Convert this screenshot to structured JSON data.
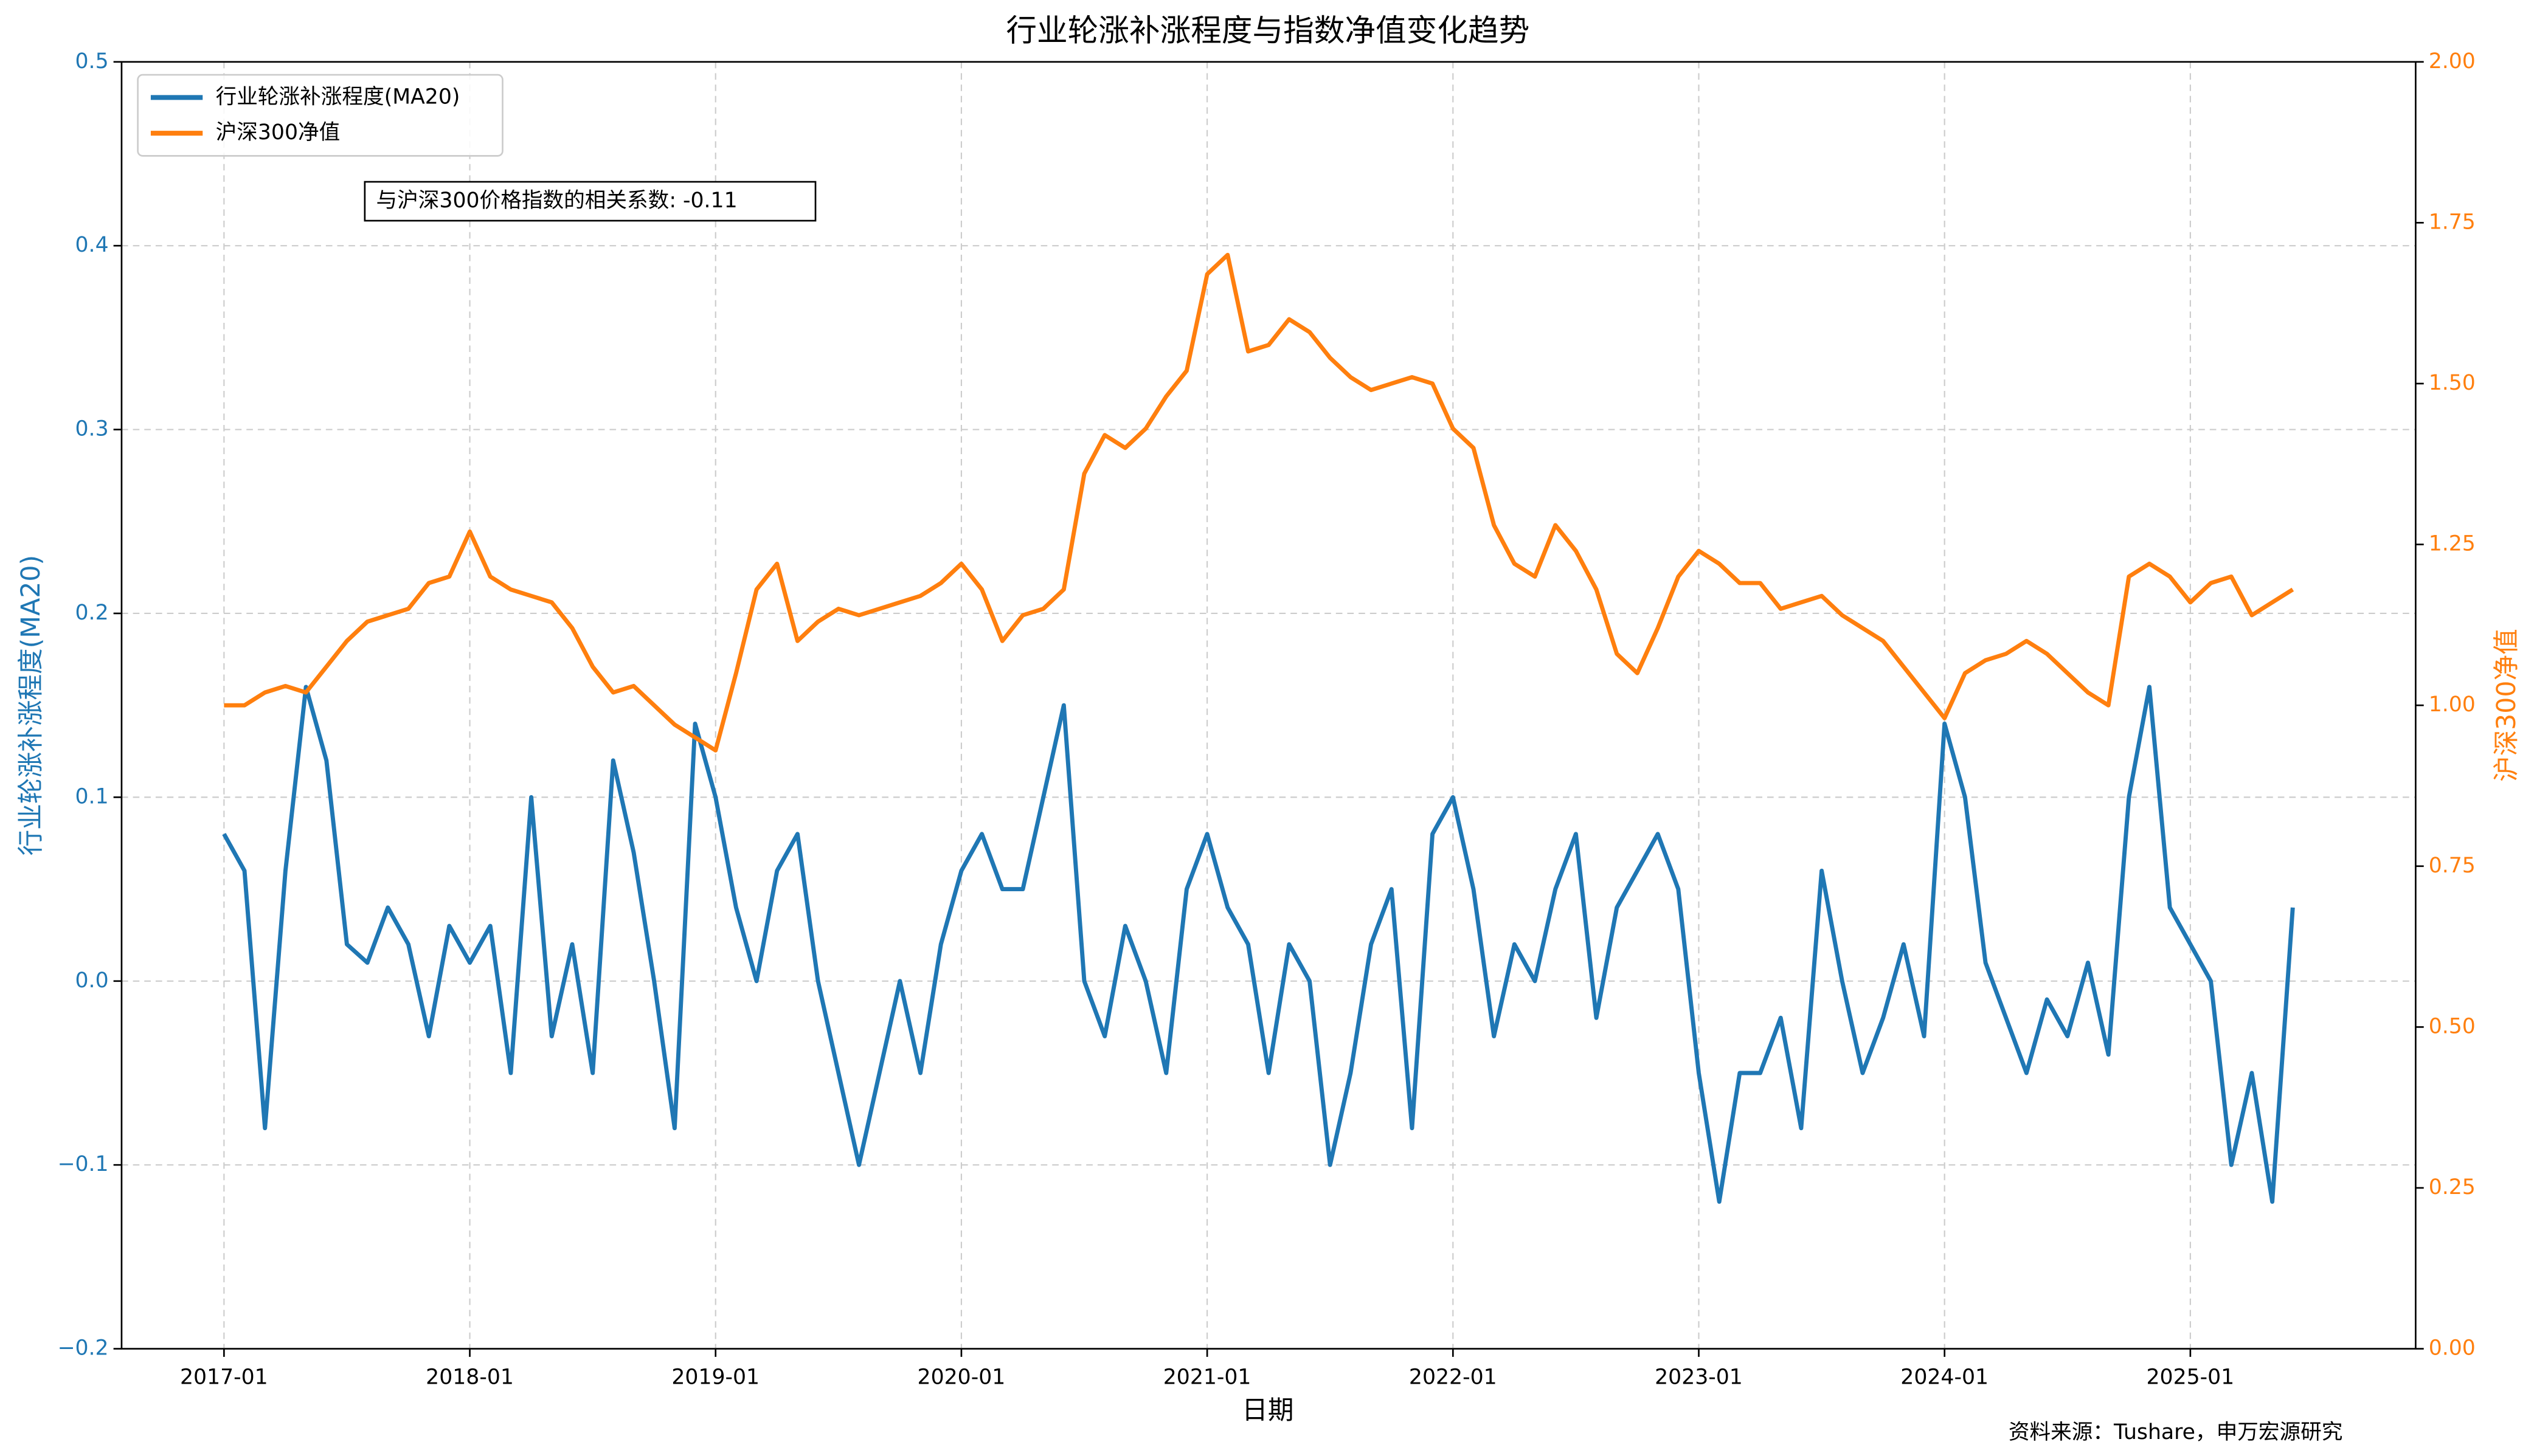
{
  "chart_data": {
    "type": "line",
    "title": "行业轮涨补涨程度与指数净值变化趋势",
    "xlabel": "日期",
    "ylabel": "行业轮涨补涨程度(MA20)",
    "y2label": "沪深300净值",
    "annotation": "与沪深300价格指数的相关系数: -0.11",
    "source": "资料来源：Tushare，申万宏源研究",
    "grid": true,
    "legend": "upper left",
    "x": [
      "2017-01",
      "2017-02",
      "2017-03",
      "2017-04",
      "2017-05",
      "2017-06",
      "2017-07",
      "2017-08",
      "2017-09",
      "2017-10",
      "2017-11",
      "2017-12",
      "2018-01",
      "2018-02",
      "2018-03",
      "2018-04",
      "2018-05",
      "2018-06",
      "2018-07",
      "2018-08",
      "2018-09",
      "2018-10",
      "2018-11",
      "2018-12",
      "2019-01",
      "2019-02",
      "2019-03",
      "2019-04",
      "2019-05",
      "2019-06",
      "2019-07",
      "2019-08",
      "2019-09",
      "2019-10",
      "2019-11",
      "2019-12",
      "2020-01",
      "2020-02",
      "2020-03",
      "2020-04",
      "2020-05",
      "2020-06",
      "2020-07",
      "2020-08",
      "2020-09",
      "2020-10",
      "2020-11",
      "2020-12",
      "2021-01",
      "2021-02",
      "2021-03",
      "2021-04",
      "2021-05",
      "2021-06",
      "2021-07",
      "2021-08",
      "2021-09",
      "2021-10",
      "2021-11",
      "2021-12",
      "2022-01",
      "2022-02",
      "2022-03",
      "2022-04",
      "2022-05",
      "2022-06",
      "2022-07",
      "2022-08",
      "2022-09",
      "2022-10",
      "2022-11",
      "2022-12",
      "2023-01",
      "2023-02",
      "2023-03",
      "2023-04",
      "2023-05",
      "2023-06",
      "2023-07",
      "2023-08",
      "2023-09",
      "2023-10",
      "2023-11",
      "2023-12",
      "2024-01",
      "2024-02",
      "2024-03",
      "2024-04",
      "2024-05",
      "2024-06",
      "2024-07",
      "2024-08",
      "2024-09",
      "2024-10",
      "2024-11",
      "2024-12",
      "2025-01",
      "2025-02",
      "2025-03",
      "2025-04",
      "2025-05",
      "2025-06"
    ],
    "xlim": [
      "2016-08",
      "2025-12"
    ],
    "xticks": [
      "2017-01",
      "2018-01",
      "2019-01",
      "2020-01",
      "2021-01",
      "2022-01",
      "2023-01",
      "2024-01",
      "2025-01"
    ],
    "ylim": [
      -0.2,
      0.5
    ],
    "yticks": [
      {
        "value": -0.2,
        "label": "−0.2"
      },
      {
        "value": -0.1,
        "label": "−0.1"
      },
      {
        "value": 0,
        "label": "0.0"
      },
      {
        "value": 0.1,
        "label": "0.1"
      },
      {
        "value": 0.2,
        "label": "0.2"
      },
      {
        "value": 0.3,
        "label": "0.3"
      },
      {
        "value": 0.4,
        "label": "0.4"
      },
      {
        "value": 0.5,
        "label": "0.5"
      }
    ],
    "y2lim": [
      0,
      2
    ],
    "y2ticks": [
      {
        "value": 0,
        "label": "0.00"
      },
      {
        "value": 0.25,
        "label": "0.25"
      },
      {
        "value": 0.5,
        "label": "0.50"
      },
      {
        "value": 0.75,
        "label": "0.75"
      },
      {
        "value": 1,
        "label": "1.00"
      },
      {
        "value": 1.25,
        "label": "1.25"
      },
      {
        "value": 1.5,
        "label": "1.50"
      },
      {
        "value": 1.75,
        "label": "1.75"
      },
      {
        "value": 2,
        "label": "2.00"
      }
    ],
    "series": [
      {
        "name": "行业轮涨补涨程度(MA20)",
        "color": "#1f77b4",
        "axis": "y",
        "values": [
          0.08,
          0.06,
          -0.08,
          0.06,
          0.16,
          0.12,
          0.02,
          0.01,
          0.04,
          0.02,
          -0.03,
          0.03,
          0.01,
          0.03,
          -0.05,
          0.1,
          -0.03,
          0.02,
          -0.05,
          0.12,
          0.07,
          0.0,
          -0.08,
          0.14,
          0.1,
          0.04,
          0.0,
          0.06,
          0.08,
          0.0,
          -0.05,
          -0.1,
          -0.05,
          0.0,
          -0.05,
          0.02,
          0.06,
          0.08,
          0.05,
          0.05,
          0.1,
          0.15,
          0.0,
          -0.03,
          0.03,
          0.0,
          -0.05,
          0.05,
          0.08,
          0.04,
          0.02,
          -0.05,
          0.02,
          0.0,
          -0.1,
          -0.05,
          0.02,
          0.05,
          -0.08,
          0.08,
          0.1,
          0.05,
          -0.03,
          0.02,
          0.0,
          0.05,
          0.08,
          -0.02,
          0.04,
          0.06,
          0.08,
          0.05,
          -0.05,
          -0.12,
          -0.05,
          -0.05,
          -0.02,
          -0.08,
          0.06,
          0.0,
          -0.05,
          -0.02,
          0.02,
          -0.03,
          0.14,
          0.1,
          0.01,
          -0.02,
          -0.05,
          -0.01,
          -0.03,
          0.01,
          -0.04,
          0.1,
          0.16,
          0.04,
          0.02,
          0.0,
          -0.1,
          -0.05,
          -0.12,
          0.04
        ]
      },
      {
        "name": "沪深300净值",
        "color": "#ff7f0e",
        "axis": "y2",
        "values": [
          1.0,
          1.0,
          1.02,
          1.03,
          1.02,
          1.06,
          1.1,
          1.13,
          1.14,
          1.15,
          1.19,
          1.2,
          1.27,
          1.2,
          1.18,
          1.17,
          1.16,
          1.12,
          1.06,
          1.02,
          1.03,
          1.0,
          0.97,
          0.95,
          0.93,
          1.05,
          1.18,
          1.22,
          1.1,
          1.13,
          1.15,
          1.14,
          1.15,
          1.16,
          1.17,
          1.19,
          1.22,
          1.18,
          1.1,
          1.14,
          1.15,
          1.18,
          1.36,
          1.42,
          1.4,
          1.43,
          1.48,
          1.52,
          1.67,
          1.7,
          1.55,
          1.56,
          1.6,
          1.58,
          1.54,
          1.51,
          1.49,
          1.5,
          1.51,
          1.5,
          1.43,
          1.4,
          1.28,
          1.22,
          1.2,
          1.28,
          1.24,
          1.18,
          1.08,
          1.05,
          1.12,
          1.2,
          1.24,
          1.22,
          1.19,
          1.19,
          1.15,
          1.16,
          1.17,
          1.14,
          1.12,
          1.1,
          1.06,
          1.02,
          0.98,
          1.05,
          1.07,
          1.08,
          1.1,
          1.08,
          1.05,
          1.02,
          1.0,
          1.2,
          1.22,
          1.2,
          1.16,
          1.19,
          1.2,
          1.14,
          1.16,
          1.18
        ]
      }
    ]
  }
}
